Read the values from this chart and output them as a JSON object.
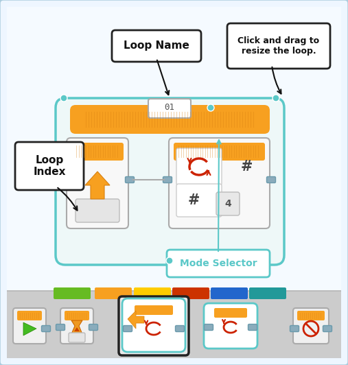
{
  "bg_color": "#C8DDEF",
  "inner_bg": "#EEF6FF",
  "white_area_bg": "#F5FAFF",
  "loop_name_text": "Loop Name",
  "loop_index_text": "Loop\nIndex",
  "mode_selector_text": "Mode Selector",
  "click_drag_text": "Click and drag to\nresize the loop.",
  "loop_label": "01",
  "hash_symbol": "#",
  "count_value": "4",
  "orange_color": "#F7A020",
  "orange_dark": "#D88010",
  "teal_color": "#5BC8C8",
  "teal_dark": "#3AACAC",
  "white": "#FFFFFF",
  "light_gray": "#E8E8E8",
  "mid_gray": "#BBBBBB",
  "gray": "#AAAAAA",
  "dark_gray": "#555555",
  "red_arrow": "#CC2200",
  "black": "#111111",
  "toolbar_bg": "#BBBBBB",
  "green_tab": "#66BB22",
  "orange_tab": "#F7A020",
  "yellow_tab": "#FFCC00",
  "red_tab": "#CC3300",
  "blue_tab": "#2266CC",
  "teal_tab": "#229999",
  "connector_color": "#8AACBC",
  "connector_border": "#6A9AAC"
}
